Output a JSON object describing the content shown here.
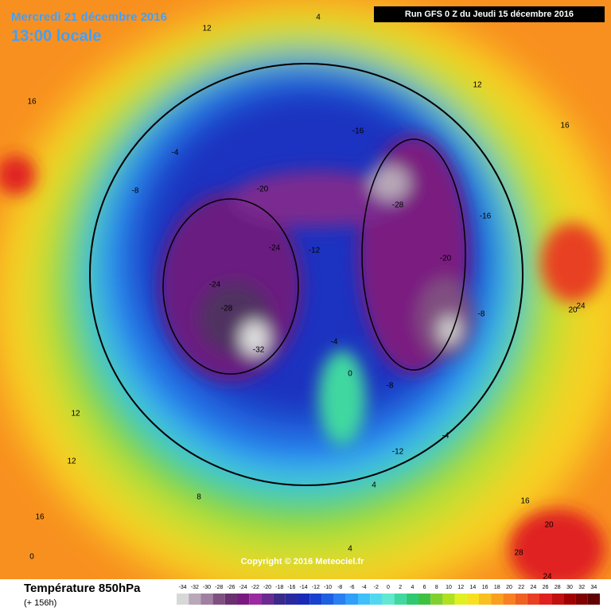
{
  "header": {
    "date": "Mercredi 21 décembre 2016",
    "time": "13:00 locale",
    "run": "Run GFS 0 Z du Jeudi 15 décembre 2016"
  },
  "footer": {
    "title": "Température 850hPa",
    "lead": "(+ 156h)",
    "copyright": "Copyright © 2016 Meteociel.fr"
  },
  "legend": {
    "values": [
      -34,
      -32,
      -30,
      -28,
      -26,
      -24,
      -22,
      -20,
      -18,
      -16,
      -14,
      -12,
      -10,
      -8,
      -6,
      -4,
      -2,
      0,
      2,
      4,
      6,
      8,
      10,
      12,
      14,
      16,
      18,
      20,
      22,
      24,
      26,
      28,
      30,
      32,
      34
    ],
    "colors": [
      "#d8d8d8",
      "#b8a8b8",
      "#a080a0",
      "#805080",
      "#6a3070",
      "#7a1a80",
      "#9a2aa0",
      "#6a2a90",
      "#3a2a8a",
      "#2a2aa0",
      "#1a2ab8",
      "#1a40d0",
      "#1e60e0",
      "#2a80f0",
      "#30a0f8",
      "#40c0f8",
      "#50d8f0",
      "#60e8d0",
      "#40d8a0",
      "#30c870",
      "#40c040",
      "#80d030",
      "#b0e020",
      "#e0f020",
      "#f8e020",
      "#f8c020",
      "#f8a020",
      "#f88020",
      "#f06020",
      "#e84020",
      "#e02020",
      "#c01010",
      "#a00000",
      "#800000",
      "#600000"
    ]
  },
  "map_labels": [
    "12",
    "16",
    "12",
    "16",
    "4",
    "-4",
    "-8",
    "-16",
    "-24",
    "-28",
    "-32",
    "-20",
    "-12",
    "-8",
    "-4",
    "0",
    "4",
    "8",
    "12",
    "16",
    "20",
    "24",
    "-24",
    "-28",
    "-20",
    "-16",
    "-12",
    "-8",
    "-4",
    "0",
    "4",
    "12",
    "16",
    "20",
    "24",
    "28"
  ]
}
